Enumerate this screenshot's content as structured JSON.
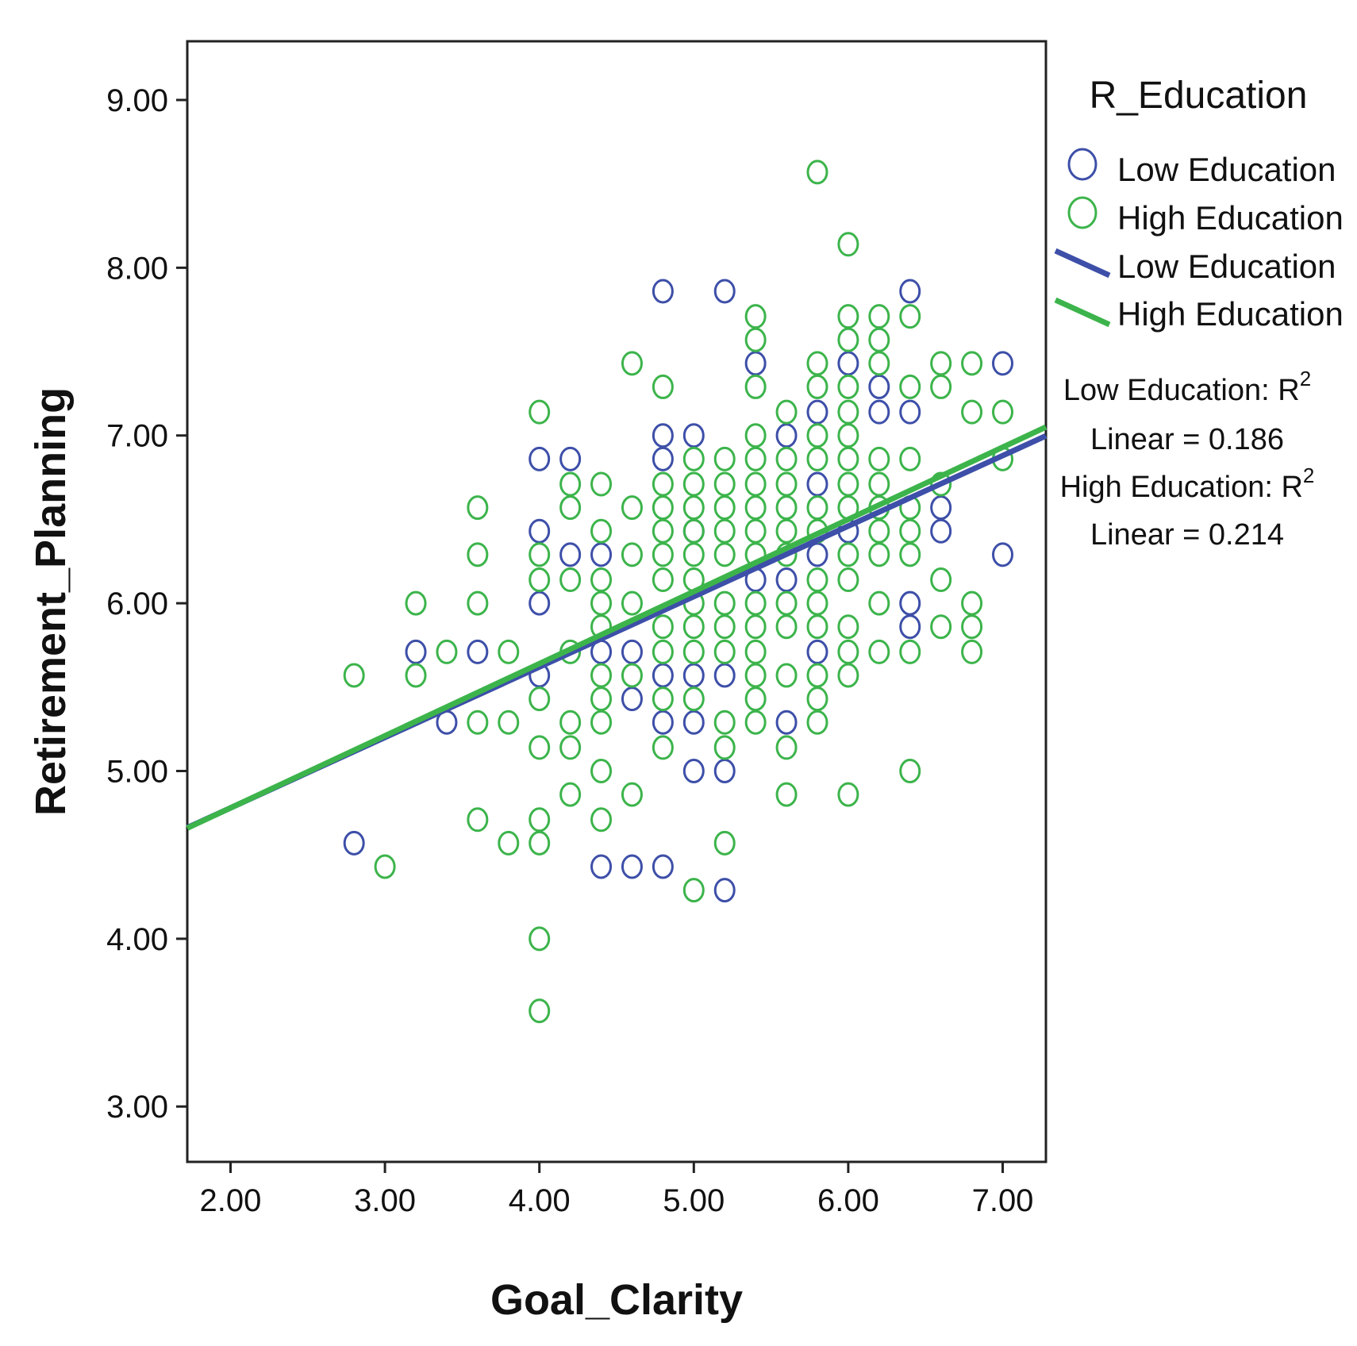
{
  "chart_data": {
    "type": "scatter",
    "xlabel": "Goal_Clarity",
    "ylabel": "Retirement_Planning",
    "xlim": [
      1.72,
      7.28
    ],
    "ylim": [
      2.67,
      9.35
    ],
    "x_ticks": [
      "2.00",
      "3.00",
      "4.00",
      "5.00",
      "6.00",
      "7.00"
    ],
    "y_ticks": [
      "3.00",
      "4.00",
      "5.00",
      "6.00",
      "7.00",
      "8.00",
      "9.00"
    ],
    "grid": false,
    "legend": {
      "title": "R_Education",
      "position": "right",
      "marker_items": [
        "Low Education",
        "High Education"
      ],
      "line_items": [
        "Low Education",
        "High Education"
      ]
    },
    "r2_annotations": [
      {
        "label": "Low Education: R",
        "sup": "2",
        "value_line": "Linear = 0.186"
      },
      {
        "label": "High Education: R",
        "sup": "2",
        "value_line": "Linear = 0.214"
      }
    ],
    "series": [
      {
        "name": "Low Education",
        "color": "#3d4fa8",
        "fit": {
          "intercept": 3.94,
          "slope": 0.42
        },
        "points": [
          [
            2.8,
            4.57
          ],
          [
            3.2,
            5.71
          ],
          [
            3.4,
            5.29
          ],
          [
            3.6,
            5.71
          ],
          [
            4.0,
            6.86
          ],
          [
            4.0,
            6.43
          ],
          [
            4.0,
            6.0
          ],
          [
            4.0,
            5.57
          ],
          [
            4.2,
            6.86
          ],
          [
            4.2,
            6.29
          ],
          [
            4.4,
            6.29
          ],
          [
            4.4,
            5.71
          ],
          [
            4.4,
            4.43
          ],
          [
            4.6,
            5.71
          ],
          [
            4.6,
            5.43
          ],
          [
            4.6,
            4.43
          ],
          [
            4.8,
            7.86
          ],
          [
            4.8,
            7.0
          ],
          [
            4.8,
            6.86
          ],
          [
            4.8,
            5.57
          ],
          [
            4.8,
            5.29
          ],
          [
            4.8,
            4.43
          ],
          [
            5.0,
            7.0
          ],
          [
            5.0,
            6.43
          ],
          [
            5.0,
            5.57
          ],
          [
            5.0,
            5.29
          ],
          [
            5.0,
            5.0
          ],
          [
            5.2,
            7.86
          ],
          [
            5.2,
            5.57
          ],
          [
            5.2,
            5.0
          ],
          [
            5.2,
            4.29
          ],
          [
            5.4,
            7.43
          ],
          [
            5.4,
            6.14
          ],
          [
            5.6,
            7.0
          ],
          [
            5.6,
            6.14
          ],
          [
            5.6,
            5.29
          ],
          [
            5.8,
            7.14
          ],
          [
            5.8,
            6.71
          ],
          [
            5.8,
            6.29
          ],
          [
            5.8,
            5.71
          ],
          [
            6.0,
            7.43
          ],
          [
            6.0,
            6.43
          ],
          [
            6.2,
            7.29
          ],
          [
            6.2,
            7.14
          ],
          [
            6.4,
            7.86
          ],
          [
            6.4,
            7.14
          ],
          [
            6.4,
            6.0
          ],
          [
            6.4,
            5.86
          ],
          [
            6.6,
            6.57
          ],
          [
            6.6,
            6.43
          ],
          [
            7.0,
            7.43
          ],
          [
            7.0,
            6.29
          ]
        ]
      },
      {
        "name": "High Education",
        "color": "#3cb44b",
        "fit": {
          "intercept": 3.92,
          "slope": 0.43
        },
        "points": [
          [
            2.8,
            5.57
          ],
          [
            3.0,
            4.43
          ],
          [
            3.2,
            6.0
          ],
          [
            3.2,
            5.57
          ],
          [
            3.4,
            5.71
          ],
          [
            3.6,
            6.57
          ],
          [
            3.6,
            6.29
          ],
          [
            3.6,
            6.0
          ],
          [
            3.6,
            5.29
          ],
          [
            3.6,
            4.71
          ],
          [
            3.8,
            5.71
          ],
          [
            3.8,
            5.29
          ],
          [
            3.8,
            4.57
          ],
          [
            4.0,
            7.14
          ],
          [
            4.0,
            6.29
          ],
          [
            4.0,
            6.14
          ],
          [
            4.0,
            5.43
          ],
          [
            4.0,
            5.14
          ],
          [
            4.0,
            4.71
          ],
          [
            4.0,
            4.57
          ],
          [
            4.0,
            4.0
          ],
          [
            4.0,
            3.57
          ],
          [
            4.2,
            6.71
          ],
          [
            4.2,
            6.57
          ],
          [
            4.2,
            6.14
          ],
          [
            4.2,
            5.71
          ],
          [
            4.2,
            5.29
          ],
          [
            4.2,
            5.14
          ],
          [
            4.2,
            4.86
          ],
          [
            4.4,
            6.71
          ],
          [
            4.4,
            6.43
          ],
          [
            4.4,
            6.14
          ],
          [
            4.4,
            6.0
          ],
          [
            4.4,
            5.86
          ],
          [
            4.4,
            5.57
          ],
          [
            4.4,
            5.43
          ],
          [
            4.4,
            5.29
          ],
          [
            4.4,
            5.0
          ],
          [
            4.4,
            4.71
          ],
          [
            4.6,
            7.43
          ],
          [
            4.6,
            6.57
          ],
          [
            4.6,
            6.29
          ],
          [
            4.6,
            6.0
          ],
          [
            4.6,
            5.57
          ],
          [
            4.6,
            4.86
          ],
          [
            4.8,
            7.29
          ],
          [
            4.8,
            6.71
          ],
          [
            4.8,
            6.57
          ],
          [
            4.8,
            6.43
          ],
          [
            4.8,
            6.29
          ],
          [
            4.8,
            6.14
          ],
          [
            4.8,
            5.86
          ],
          [
            4.8,
            5.71
          ],
          [
            4.8,
            5.43
          ],
          [
            4.8,
            5.14
          ],
          [
            5.0,
            6.86
          ],
          [
            5.0,
            6.71
          ],
          [
            5.0,
            6.57
          ],
          [
            5.0,
            6.43
          ],
          [
            5.0,
            6.29
          ],
          [
            5.0,
            6.14
          ],
          [
            5.0,
            6.0
          ],
          [
            5.0,
            5.86
          ],
          [
            5.0,
            5.71
          ],
          [
            5.0,
            5.43
          ],
          [
            5.0,
            4.29
          ],
          [
            5.2,
            6.86
          ],
          [
            5.2,
            6.71
          ],
          [
            5.2,
            6.57
          ],
          [
            5.2,
            6.43
          ],
          [
            5.2,
            6.29
          ],
          [
            5.2,
            6.0
          ],
          [
            5.2,
            5.86
          ],
          [
            5.2,
            5.71
          ],
          [
            5.2,
            5.29
          ],
          [
            5.2,
            5.14
          ],
          [
            5.2,
            4.57
          ],
          [
            5.4,
            7.71
          ],
          [
            5.4,
            7.57
          ],
          [
            5.4,
            7.29
          ],
          [
            5.4,
            7.0
          ],
          [
            5.4,
            6.86
          ],
          [
            5.4,
            6.71
          ],
          [
            5.4,
            6.57
          ],
          [
            5.4,
            6.43
          ],
          [
            5.4,
            6.29
          ],
          [
            5.4,
            6.0
          ],
          [
            5.4,
            5.86
          ],
          [
            5.4,
            5.71
          ],
          [
            5.4,
            5.57
          ],
          [
            5.4,
            5.43
          ],
          [
            5.4,
            5.29
          ],
          [
            5.6,
            7.14
          ],
          [
            5.6,
            6.86
          ],
          [
            5.6,
            6.71
          ],
          [
            5.6,
            6.57
          ],
          [
            5.6,
            6.43
          ],
          [
            5.6,
            6.29
          ],
          [
            5.6,
            6.0
          ],
          [
            5.6,
            5.86
          ],
          [
            5.6,
            5.57
          ],
          [
            5.6,
            5.14
          ],
          [
            5.6,
            4.86
          ],
          [
            5.8,
            8.57
          ],
          [
            5.8,
            7.43
          ],
          [
            5.8,
            7.29
          ],
          [
            5.8,
            7.0
          ],
          [
            5.8,
            6.86
          ],
          [
            5.8,
            6.57
          ],
          [
            5.8,
            6.43
          ],
          [
            5.8,
            6.14
          ],
          [
            5.8,
            6.0
          ],
          [
            5.8,
            5.86
          ],
          [
            5.8,
            5.57
          ],
          [
            5.8,
            5.43
          ],
          [
            5.8,
            5.29
          ],
          [
            6.0,
            8.14
          ],
          [
            6.0,
            7.71
          ],
          [
            6.0,
            7.57
          ],
          [
            6.0,
            7.29
          ],
          [
            6.0,
            7.14
          ],
          [
            6.0,
            7.0
          ],
          [
            6.0,
            6.86
          ],
          [
            6.0,
            6.71
          ],
          [
            6.0,
            6.57
          ],
          [
            6.0,
            6.29
          ],
          [
            6.0,
            6.14
          ],
          [
            6.0,
            5.86
          ],
          [
            6.0,
            5.71
          ],
          [
            6.0,
            5.57
          ],
          [
            6.0,
            4.86
          ],
          [
            6.2,
            7.71
          ],
          [
            6.2,
            7.57
          ],
          [
            6.2,
            7.43
          ],
          [
            6.2,
            6.86
          ],
          [
            6.2,
            6.71
          ],
          [
            6.2,
            6.57
          ],
          [
            6.2,
            6.43
          ],
          [
            6.2,
            6.29
          ],
          [
            6.2,
            6.0
          ],
          [
            6.2,
            5.71
          ],
          [
            6.4,
            7.71
          ],
          [
            6.4,
            7.29
          ],
          [
            6.4,
            6.86
          ],
          [
            6.4,
            6.57
          ],
          [
            6.4,
            6.43
          ],
          [
            6.4,
            6.29
          ],
          [
            6.4,
            5.71
          ],
          [
            6.4,
            5.0
          ],
          [
            6.6,
            7.43
          ],
          [
            6.6,
            7.29
          ],
          [
            6.6,
            6.71
          ],
          [
            6.6,
            6.14
          ],
          [
            6.6,
            5.86
          ],
          [
            6.8,
            7.43
          ],
          [
            6.8,
            7.14
          ],
          [
            6.8,
            6.0
          ],
          [
            6.8,
            5.86
          ],
          [
            6.8,
            5.71
          ],
          [
            7.0,
            7.14
          ],
          [
            7.0,
            6.86
          ]
        ]
      }
    ]
  }
}
